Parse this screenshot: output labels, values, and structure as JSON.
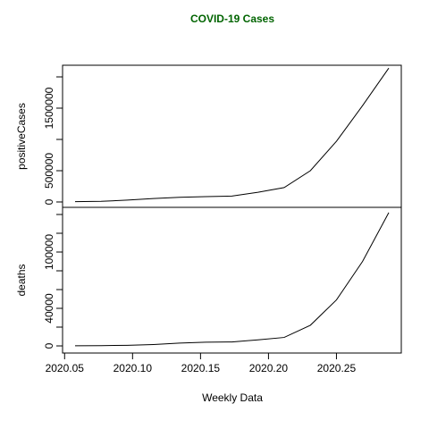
{
  "chart_data": {
    "type": "line",
    "title": "COVID-19 Cases",
    "title_color": "#006400",
    "xlabel": "Weekly Data",
    "x": [
      2020.0577,
      2020.0769,
      2020.0962,
      2020.1154,
      2020.1346,
      2020.1538,
      2020.1731,
      2020.1923,
      2020.2115,
      2020.2308,
      2020.25,
      2020.2692,
      2020.2885
    ],
    "xlim": [
      2020.0485,
      2020.2977
    ],
    "xticks": [
      2020.05,
      {
        "value": 2020.1,
        "label": "2020.10"
      },
      2020.15,
      {
        "value": 2020.2,
        "label": "2020.20"
      },
      2020.25
    ],
    "color": "#000000",
    "panels": [
      {
        "ylabel": "positiveCases",
        "values": [
          5000,
          10000,
          30000,
          55000,
          75000,
          85000,
          95000,
          155000,
          230000,
          500000,
          970000,
          1540000,
          2140000
        ],
        "ylim": [
          -86000,
          2186000
        ],
        "yticks": [
          0,
          500000,
          1500000
        ],
        "minor_yticks": [
          1000000,
          2000000
        ]
      },
      {
        "ylabel": "deaths",
        "values": [
          100,
          300,
          600,
          1500,
          3000,
          4000,
          4200,
          6500,
          9000,
          22000,
          49000,
          90000,
          142000
        ],
        "ylim": [
          -7600,
          147600
        ],
        "yticks": [
          0,
          40000,
          100000
        ],
        "minor_yticks": [
          20000,
          60000,
          80000,
          120000,
          140000
        ]
      }
    ]
  }
}
